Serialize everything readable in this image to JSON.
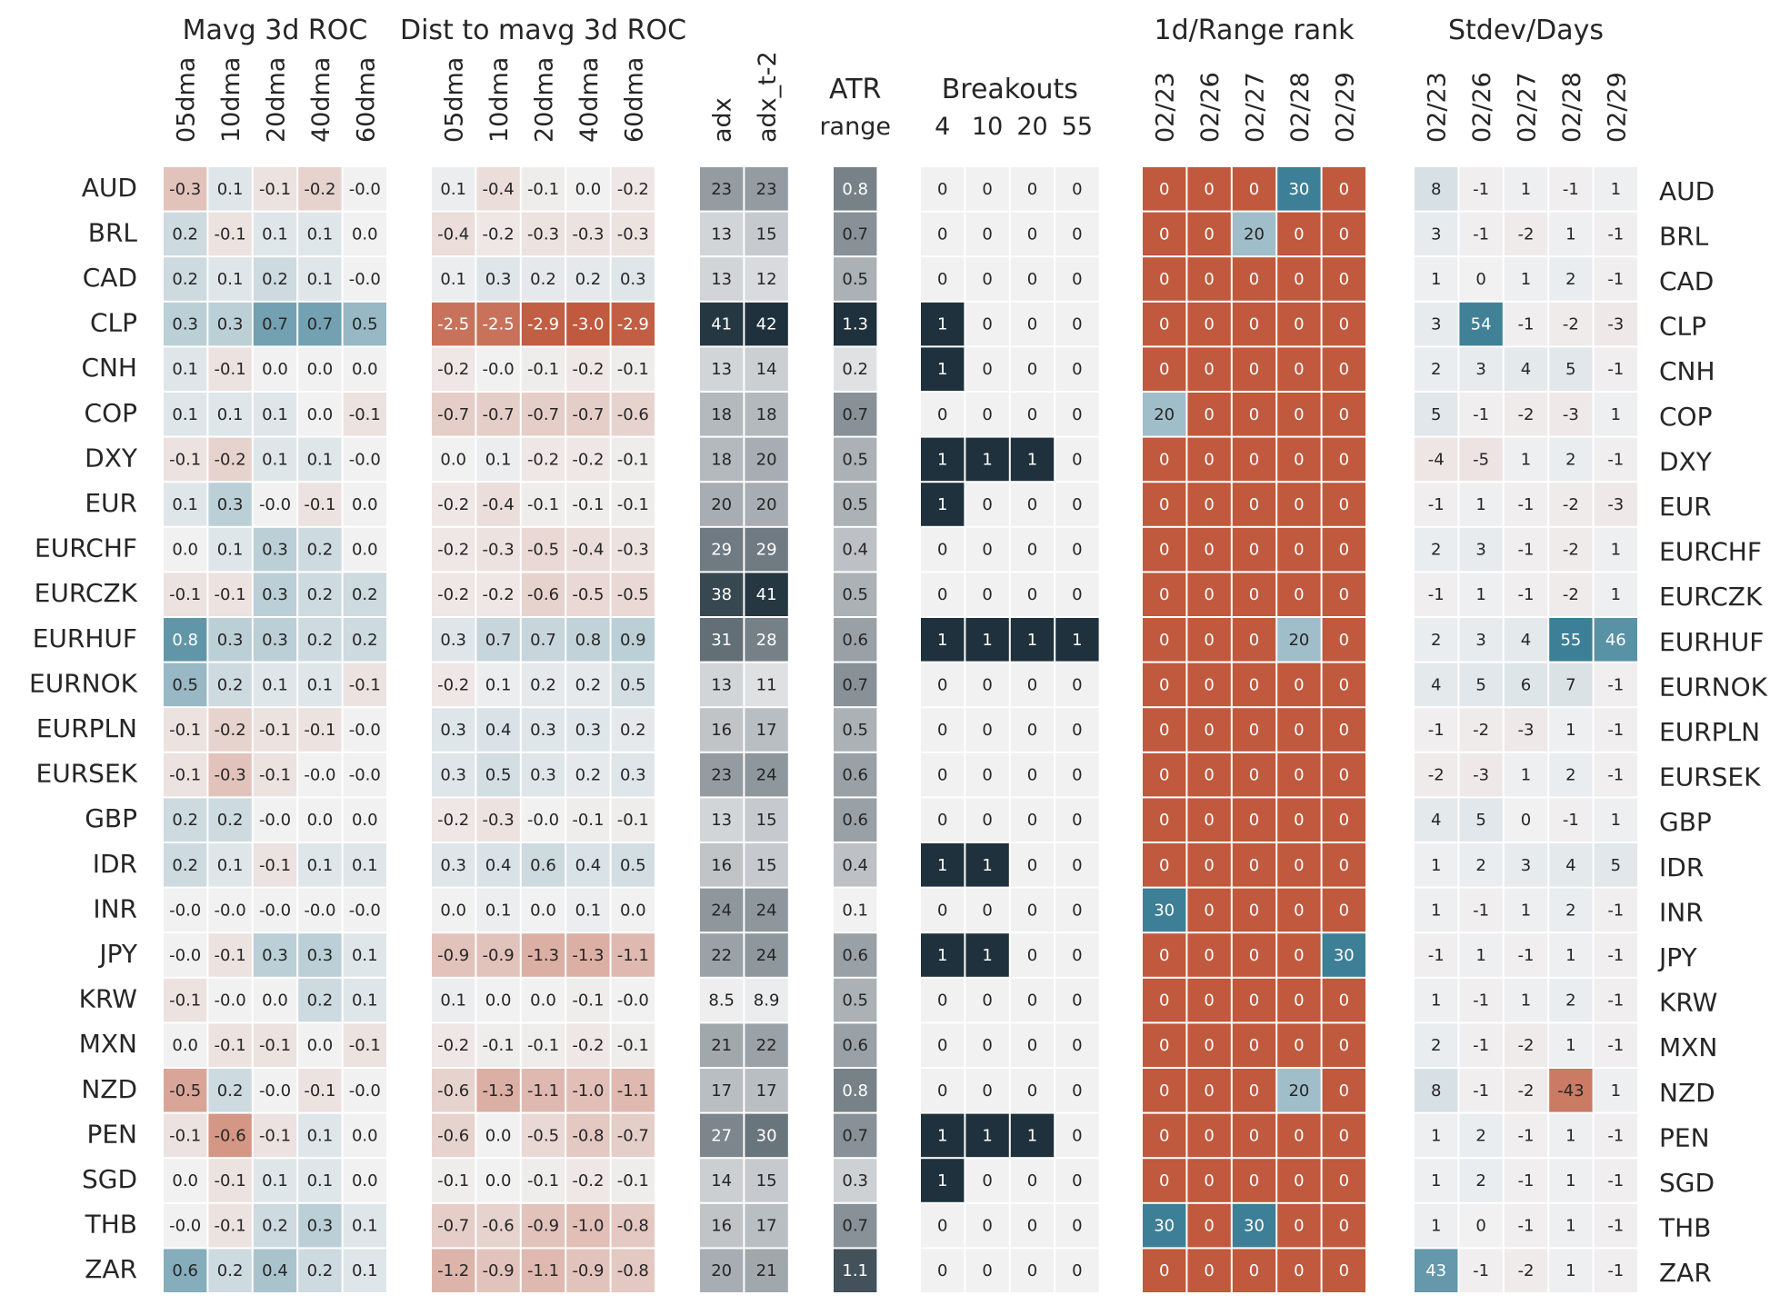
{
  "chart_data": {
    "type": "heatmap",
    "rows": [
      "AUD",
      "BRL",
      "CAD",
      "CLP",
      "CNH",
      "COP",
      "DXY",
      "EUR",
      "EURCHF",
      "EURCZK",
      "EURHUF",
      "EURNOK",
      "EURPLN",
      "EURSEK",
      "GBP",
      "IDR",
      "INR",
      "JPY",
      "KRW",
      "MXN",
      "NZD",
      "PEN",
      "SGD",
      "THB",
      "ZAR"
    ],
    "colors": {
      "positive": "#3d7f96",
      "negative": "#c0593d",
      "neutral": "#f1f1f2",
      "dark": "#1f313c",
      "rank_high": "#3d7f96",
      "rank_low": "#c0593d"
    },
    "panels": [
      {
        "title": "Mavg 3d ROC",
        "columns": [
          "05dma",
          "10dma",
          "20dma",
          "40dma",
          "60dma"
        ],
        "vmax": 1.0,
        "scale": "diverging",
        "values": [
          [
            "-0.3",
            "0.1",
            "-0.1",
            "-0.2",
            "-0.0"
          ],
          [
            "0.2",
            "-0.1",
            "0.1",
            "0.1",
            "0.0"
          ],
          [
            "0.2",
            "0.1",
            "0.2",
            "0.1",
            "-0.0"
          ],
          [
            "0.3",
            "0.3",
            "0.7",
            "0.7",
            "0.5"
          ],
          [
            "0.1",
            "-0.1",
            "0.0",
            "0.0",
            "0.0"
          ],
          [
            "0.1",
            "0.1",
            "0.1",
            "0.0",
            "-0.1"
          ],
          [
            "-0.1",
            "-0.2",
            "0.1",
            "0.1",
            "-0.0"
          ],
          [
            "0.1",
            "0.3",
            "-0.0",
            "-0.1",
            "0.0"
          ],
          [
            "0.0",
            "0.1",
            "0.3",
            "0.2",
            "0.0"
          ],
          [
            "-0.1",
            "-0.1",
            "0.3",
            "0.2",
            "0.2"
          ],
          [
            "0.8",
            "0.3",
            "0.3",
            "0.2",
            "0.2"
          ],
          [
            "0.5",
            "0.2",
            "0.1",
            "0.1",
            "-0.1"
          ],
          [
            "-0.1",
            "-0.2",
            "-0.1",
            "-0.1",
            "-0.0"
          ],
          [
            "-0.1",
            "-0.3",
            "-0.1",
            "-0.0",
            "-0.0"
          ],
          [
            "0.2",
            "0.2",
            "-0.0",
            "0.0",
            "0.0"
          ],
          [
            "0.2",
            "0.1",
            "-0.1",
            "0.1",
            "0.1"
          ],
          [
            "-0.0",
            "-0.0",
            "-0.0",
            "-0.0",
            "-0.0"
          ],
          [
            "-0.0",
            "-0.1",
            "0.3",
            "0.3",
            "0.1"
          ],
          [
            "-0.1",
            "-0.0",
            "0.0",
            "0.2",
            "0.1"
          ],
          [
            "0.0",
            "-0.1",
            "-0.1",
            "0.0",
            "-0.1"
          ],
          [
            "-0.5",
            "0.2",
            "-0.0",
            "-0.1",
            "-0.0"
          ],
          [
            "-0.1",
            "-0.6",
            "-0.1",
            "0.1",
            "0.0"
          ],
          [
            "0.0",
            "-0.1",
            "0.1",
            "0.1",
            "0.0"
          ],
          [
            "-0.0",
            "-0.1",
            "0.2",
            "0.3",
            "0.1"
          ],
          [
            "0.6",
            "0.2",
            "0.4",
            "0.2",
            "0.1"
          ]
        ]
      },
      {
        "title": "Dist to mavg 3d ROC",
        "columns": [
          "05dma",
          "10dma",
          "20dma",
          "40dma",
          "60dma"
        ],
        "vmax": 3.0,
        "scale": "diverging",
        "values": [
          [
            "0.1",
            "-0.4",
            "-0.1",
            "0.0",
            "-0.2"
          ],
          [
            "-0.4",
            "-0.2",
            "-0.3",
            "-0.3",
            "-0.3"
          ],
          [
            "0.1",
            "0.3",
            "0.2",
            "0.2",
            "0.3"
          ],
          [
            "-2.5",
            "-2.5",
            "-2.9",
            "-3.0",
            "-2.9"
          ],
          [
            "-0.2",
            "-0.0",
            "-0.1",
            "-0.2",
            "-0.1"
          ],
          [
            "-0.7",
            "-0.7",
            "-0.7",
            "-0.7",
            "-0.6"
          ],
          [
            "0.0",
            "0.1",
            "-0.2",
            "-0.2",
            "-0.1"
          ],
          [
            "-0.2",
            "-0.4",
            "-0.1",
            "-0.1",
            "-0.1"
          ],
          [
            "-0.2",
            "-0.3",
            "-0.5",
            "-0.4",
            "-0.3"
          ],
          [
            "-0.2",
            "-0.2",
            "-0.6",
            "-0.5",
            "-0.5"
          ],
          [
            "0.3",
            "0.7",
            "0.7",
            "0.8",
            "0.9"
          ],
          [
            "-0.2",
            "0.1",
            "0.2",
            "0.2",
            "0.5"
          ],
          [
            "0.3",
            "0.4",
            "0.3",
            "0.3",
            "0.2"
          ],
          [
            "0.3",
            "0.5",
            "0.3",
            "0.2",
            "0.3"
          ],
          [
            "-0.2",
            "-0.3",
            "-0.0",
            "-0.1",
            "-0.1"
          ],
          [
            "0.3",
            "0.4",
            "0.6",
            "0.4",
            "0.5"
          ],
          [
            "0.0",
            "0.1",
            "0.0",
            "0.1",
            "0.0"
          ],
          [
            "-0.9",
            "-0.9",
            "-1.3",
            "-1.3",
            "-1.1"
          ],
          [
            "0.1",
            "0.0",
            "0.0",
            "-0.1",
            "-0.0"
          ],
          [
            "-0.2",
            "-0.1",
            "-0.1",
            "-0.2",
            "-0.1"
          ],
          [
            "-0.6",
            "-1.3",
            "-1.1",
            "-1.0",
            "-1.1"
          ],
          [
            "-0.6",
            "0.0",
            "-0.5",
            "-0.8",
            "-0.7"
          ],
          [
            "-0.1",
            "0.0",
            "-0.1",
            "-0.2",
            "-0.1"
          ],
          [
            "-0.7",
            "-0.6",
            "-0.9",
            "-1.0",
            "-0.8"
          ],
          [
            "-1.2",
            "-0.9",
            "-1.1",
            "-0.9",
            "-0.8"
          ]
        ]
      },
      {
        "title": "",
        "columns": [
          "adx",
          "adx_t-2"
        ],
        "vmin": 8,
        "vmax": 42,
        "scale": "sequential",
        "values": [
          [
            "23",
            "23"
          ],
          [
            "13",
            "15"
          ],
          [
            "13",
            "12"
          ],
          [
            "41",
            "42"
          ],
          [
            "13",
            "14"
          ],
          [
            "18",
            "18"
          ],
          [
            "18",
            "20"
          ],
          [
            "20",
            "20"
          ],
          [
            "29",
            "29"
          ],
          [
            "38",
            "41"
          ],
          [
            "31",
            "28"
          ],
          [
            "13",
            "11"
          ],
          [
            "16",
            "17"
          ],
          [
            "23",
            "24"
          ],
          [
            "13",
            "15"
          ],
          [
            "16",
            "15"
          ],
          [
            "24",
            "24"
          ],
          [
            "22",
            "24"
          ],
          [
            "8.5",
            "8.9"
          ],
          [
            "21",
            "22"
          ],
          [
            "17",
            "17"
          ],
          [
            "27",
            "30"
          ],
          [
            "14",
            "15"
          ],
          [
            "16",
            "17"
          ],
          [
            "20",
            "21"
          ]
        ]
      },
      {
        "title": "ATR",
        "columns": [
          "range"
        ],
        "vmin": 0.1,
        "vmax": 1.3,
        "scale": "sequential",
        "values": [
          [
            "0.8"
          ],
          [
            "0.7"
          ],
          [
            "0.5"
          ],
          [
            "1.3"
          ],
          [
            "0.2"
          ],
          [
            "0.7"
          ],
          [
            "0.5"
          ],
          [
            "0.5"
          ],
          [
            "0.4"
          ],
          [
            "0.5"
          ],
          [
            "0.6"
          ],
          [
            "0.7"
          ],
          [
            "0.5"
          ],
          [
            "0.6"
          ],
          [
            "0.6"
          ],
          [
            "0.4"
          ],
          [
            "0.1"
          ],
          [
            "0.6"
          ],
          [
            "0.5"
          ],
          [
            "0.6"
          ],
          [
            "0.8"
          ],
          [
            "0.7"
          ],
          [
            "0.3"
          ],
          [
            "0.7"
          ],
          [
            "1.1"
          ]
        ]
      },
      {
        "title": "Breakouts",
        "columns": [
          "4",
          "10",
          "20",
          "55"
        ],
        "scale": "binary",
        "values": [
          [
            "0",
            "0",
            "0",
            "0"
          ],
          [
            "0",
            "0",
            "0",
            "0"
          ],
          [
            "0",
            "0",
            "0",
            "0"
          ],
          [
            "1",
            "0",
            "0",
            "0"
          ],
          [
            "1",
            "0",
            "0",
            "0"
          ],
          [
            "0",
            "0",
            "0",
            "0"
          ],
          [
            "1",
            "1",
            "1",
            "0"
          ],
          [
            "1",
            "0",
            "0",
            "0"
          ],
          [
            "0",
            "0",
            "0",
            "0"
          ],
          [
            "0",
            "0",
            "0",
            "0"
          ],
          [
            "1",
            "1",
            "1",
            "1"
          ],
          [
            "0",
            "0",
            "0",
            "0"
          ],
          [
            "0",
            "0",
            "0",
            "0"
          ],
          [
            "0",
            "0",
            "0",
            "0"
          ],
          [
            "0",
            "0",
            "0",
            "0"
          ],
          [
            "1",
            "1",
            "0",
            "0"
          ],
          [
            "0",
            "0",
            "0",
            "0"
          ],
          [
            "1",
            "1",
            "0",
            "0"
          ],
          [
            "0",
            "0",
            "0",
            "0"
          ],
          [
            "0",
            "0",
            "0",
            "0"
          ],
          [
            "0",
            "0",
            "0",
            "0"
          ],
          [
            "1",
            "1",
            "1",
            "0"
          ],
          [
            "1",
            "0",
            "0",
            "0"
          ],
          [
            "0",
            "0",
            "0",
            "0"
          ],
          [
            "0",
            "0",
            "0",
            "0"
          ]
        ]
      },
      {
        "title": "1d/Range rank",
        "columns": [
          "02/23",
          "02/26",
          "02/27",
          "02/28",
          "02/29"
        ],
        "vmax": 30,
        "scale": "rank",
        "values": [
          [
            "0",
            "0",
            "0",
            "30",
            "0"
          ],
          [
            "0",
            "0",
            "20",
            "0",
            "0"
          ],
          [
            "0",
            "0",
            "0",
            "0",
            "0"
          ],
          [
            "0",
            "0",
            "0",
            "0",
            "0"
          ],
          [
            "0",
            "0",
            "0",
            "0",
            "0"
          ],
          [
            "20",
            "0",
            "0",
            "0",
            "0"
          ],
          [
            "0",
            "0",
            "0",
            "0",
            "0"
          ],
          [
            "0",
            "0",
            "0",
            "0",
            "0"
          ],
          [
            "0",
            "0",
            "0",
            "0",
            "0"
          ],
          [
            "0",
            "0",
            "0",
            "0",
            "0"
          ],
          [
            "0",
            "0",
            "0",
            "20",
            "0"
          ],
          [
            "0",
            "0",
            "0",
            "0",
            "0"
          ],
          [
            "0",
            "0",
            "0",
            "0",
            "0"
          ],
          [
            "0",
            "0",
            "0",
            "0",
            "0"
          ],
          [
            "0",
            "0",
            "0",
            "0",
            "0"
          ],
          [
            "0",
            "0",
            "0",
            "0",
            "0"
          ],
          [
            "30",
            "0",
            "0",
            "0",
            "0"
          ],
          [
            "0",
            "0",
            "0",
            "0",
            "30"
          ],
          [
            "0",
            "0",
            "0",
            "0",
            "0"
          ],
          [
            "0",
            "0",
            "0",
            "0",
            "0"
          ],
          [
            "0",
            "0",
            "0",
            "20",
            "0"
          ],
          [
            "0",
            "0",
            "0",
            "0",
            "0"
          ],
          [
            "0",
            "0",
            "0",
            "0",
            "0"
          ],
          [
            "30",
            "0",
            "30",
            "0",
            "0"
          ],
          [
            "0",
            "0",
            "0",
            "0",
            "0"
          ]
        ]
      },
      {
        "title": "Stdev/Days",
        "columns": [
          "02/23",
          "02/26",
          "02/27",
          "02/28",
          "02/29"
        ],
        "vmax": 55,
        "scale": "diverging",
        "values": [
          [
            "8",
            "-1",
            "1",
            "-1",
            "1"
          ],
          [
            "3",
            "-1",
            "-2",
            "1",
            "-1"
          ],
          [
            "1",
            "0",
            "1",
            "2",
            "-1"
          ],
          [
            "3",
            "54",
            "-1",
            "-2",
            "-3"
          ],
          [
            "2",
            "3",
            "4",
            "5",
            "-1"
          ],
          [
            "5",
            "-1",
            "-2",
            "-3",
            "1"
          ],
          [
            "-4",
            "-5",
            "1",
            "2",
            "-1"
          ],
          [
            "-1",
            "1",
            "-1",
            "-2",
            "-3"
          ],
          [
            "2",
            "3",
            "-1",
            "-2",
            "1"
          ],
          [
            "-1",
            "1",
            "-1",
            "-2",
            "1"
          ],
          [
            "2",
            "3",
            "4",
            "55",
            "46"
          ],
          [
            "4",
            "5",
            "6",
            "7",
            "-1"
          ],
          [
            "-1",
            "-2",
            "-3",
            "1",
            "-1"
          ],
          [
            "-2",
            "-3",
            "1",
            "2",
            "-1"
          ],
          [
            "4",
            "5",
            "0",
            "-1",
            "1"
          ],
          [
            "1",
            "2",
            "3",
            "4",
            "5"
          ],
          [
            "1",
            "-1",
            "1",
            "2",
            "-1"
          ],
          [
            "-1",
            "1",
            "-1",
            "1",
            "-1"
          ],
          [
            "1",
            "-1",
            "1",
            "2",
            "-1"
          ],
          [
            "2",
            "-1",
            "-2",
            "1",
            "-1"
          ],
          [
            "8",
            "-1",
            "-2",
            "-43",
            "1"
          ],
          [
            "1",
            "2",
            "-1",
            "1",
            "-1"
          ],
          [
            "1",
            "2",
            "-1",
            "1",
            "-1"
          ],
          [
            "1",
            "0",
            "-1",
            "1",
            "-1"
          ],
          [
            "43",
            "-1",
            "-2",
            "1",
            "-1"
          ]
        ]
      }
    ]
  }
}
